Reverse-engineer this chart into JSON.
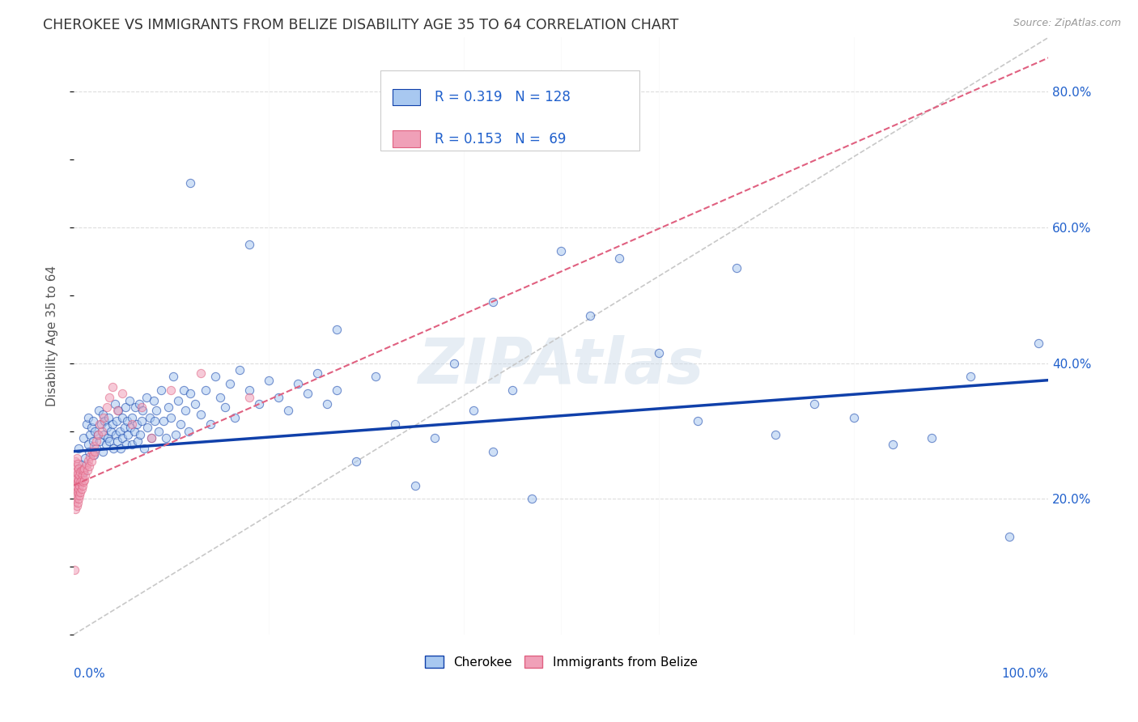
{
  "title": "CHEROKEE VS IMMIGRANTS FROM BELIZE DISABILITY AGE 35 TO 64 CORRELATION CHART",
  "source": "Source: ZipAtlas.com",
  "ylabel": "Disability Age 35 to 64",
  "yticks": [
    0.2,
    0.4,
    0.6,
    0.8
  ],
  "ytick_labels": [
    "20.0%",
    "40.0%",
    "60.0%",
    "80.0%"
  ],
  "legend_label1": "Cherokee",
  "legend_label2": "Immigrants from Belize",
  "R1": 0.319,
  "N1": 128,
  "R2": 0.153,
  "N2": 69,
  "color_blue": "#A8C8F0",
  "color_blue_line": "#1040AA",
  "color_pink": "#F0A0B8",
  "color_pink_line": "#E06080",
  "color_diag": "#C8C8C8",
  "background_color": "#FFFFFF",
  "grid_color": "#DDDDDD",
  "title_color": "#333333",
  "text_color_blue": "#2060CC",
  "text_color_source": "#999999",
  "cherokee_x": [
    0.005,
    0.008,
    0.01,
    0.01,
    0.012,
    0.013,
    0.015,
    0.015,
    0.016,
    0.017,
    0.018,
    0.02,
    0.02,
    0.021,
    0.022,
    0.023,
    0.025,
    0.026,
    0.027,
    0.028,
    0.03,
    0.03,
    0.031,
    0.032,
    0.033,
    0.034,
    0.035,
    0.036,
    0.037,
    0.038,
    0.04,
    0.041,
    0.042,
    0.043,
    0.044,
    0.045,
    0.046,
    0.047,
    0.048,
    0.05,
    0.05,
    0.052,
    0.053,
    0.054,
    0.055,
    0.056,
    0.057,
    0.058,
    0.06,
    0.06,
    0.062,
    0.063,
    0.065,
    0.066,
    0.067,
    0.068,
    0.07,
    0.071,
    0.072,
    0.075,
    0.076,
    0.078,
    0.08,
    0.082,
    0.083,
    0.085,
    0.087,
    0.09,
    0.092,
    0.095,
    0.097,
    0.1,
    0.102,
    0.105,
    0.107,
    0.11,
    0.113,
    0.115,
    0.118,
    0.12,
    0.125,
    0.13,
    0.135,
    0.14,
    0.145,
    0.15,
    0.155,
    0.16,
    0.165,
    0.17,
    0.18,
    0.19,
    0.2,
    0.21,
    0.22,
    0.23,
    0.24,
    0.25,
    0.26,
    0.27,
    0.29,
    0.31,
    0.33,
    0.35,
    0.37,
    0.39,
    0.41,
    0.43,
    0.45,
    0.47,
    0.5,
    0.53,
    0.56,
    0.6,
    0.64,
    0.68,
    0.72,
    0.76,
    0.8,
    0.84,
    0.88,
    0.92,
    0.96,
    0.99,
    0.43,
    0.27,
    0.18,
    0.12
  ],
  "cherokee_y": [
    0.275,
    0.25,
    0.24,
    0.29,
    0.26,
    0.31,
    0.28,
    0.32,
    0.27,
    0.295,
    0.305,
    0.285,
    0.315,
    0.265,
    0.3,
    0.275,
    0.295,
    0.33,
    0.285,
    0.31,
    0.27,
    0.325,
    0.295,
    0.315,
    0.28,
    0.305,
    0.29,
    0.32,
    0.285,
    0.3,
    0.31,
    0.275,
    0.34,
    0.295,
    0.315,
    0.285,
    0.33,
    0.3,
    0.275,
    0.32,
    0.29,
    0.305,
    0.335,
    0.28,
    0.315,
    0.295,
    0.345,
    0.305,
    0.28,
    0.32,
    0.3,
    0.335,
    0.31,
    0.285,
    0.34,
    0.295,
    0.315,
    0.33,
    0.275,
    0.35,
    0.305,
    0.32,
    0.29,
    0.345,
    0.315,
    0.33,
    0.3,
    0.36,
    0.315,
    0.29,
    0.335,
    0.32,
    0.38,
    0.295,
    0.345,
    0.31,
    0.36,
    0.33,
    0.3,
    0.355,
    0.34,
    0.325,
    0.36,
    0.31,
    0.38,
    0.35,
    0.335,
    0.37,
    0.32,
    0.39,
    0.36,
    0.34,
    0.375,
    0.35,
    0.33,
    0.37,
    0.355,
    0.385,
    0.34,
    0.36,
    0.255,
    0.38,
    0.31,
    0.22,
    0.29,
    0.4,
    0.33,
    0.27,
    0.36,
    0.2,
    0.565,
    0.47,
    0.555,
    0.415,
    0.315,
    0.54,
    0.295,
    0.34,
    0.32,
    0.28,
    0.29,
    0.38,
    0.145,
    0.43,
    0.49,
    0.45,
    0.575,
    0.665
  ],
  "belize_x": [
    0.001,
    0.001,
    0.001,
    0.001,
    0.001,
    0.002,
    0.002,
    0.002,
    0.002,
    0.002,
    0.002,
    0.003,
    0.003,
    0.003,
    0.003,
    0.003,
    0.003,
    0.004,
    0.004,
    0.004,
    0.004,
    0.004,
    0.005,
    0.005,
    0.005,
    0.005,
    0.006,
    0.006,
    0.006,
    0.007,
    0.007,
    0.007,
    0.008,
    0.008,
    0.008,
    0.009,
    0.009,
    0.01,
    0.01,
    0.011,
    0.011,
    0.012,
    0.013,
    0.014,
    0.015,
    0.016,
    0.017,
    0.018,
    0.019,
    0.02,
    0.021,
    0.022,
    0.023,
    0.025,
    0.027,
    0.029,
    0.031,
    0.034,
    0.037,
    0.04,
    0.045,
    0.05,
    0.06,
    0.07,
    0.08,
    0.1,
    0.13,
    0.18,
    0.001
  ],
  "belize_y": [
    0.195,
    0.21,
    0.22,
    0.23,
    0.245,
    0.185,
    0.2,
    0.215,
    0.225,
    0.24,
    0.255,
    0.19,
    0.205,
    0.218,
    0.23,
    0.248,
    0.26,
    0.195,
    0.21,
    0.225,
    0.238,
    0.252,
    0.2,
    0.215,
    0.228,
    0.245,
    0.205,
    0.22,
    0.235,
    0.21,
    0.225,
    0.24,
    0.215,
    0.228,
    0.242,
    0.22,
    0.235,
    0.225,
    0.242,
    0.228,
    0.245,
    0.235,
    0.25,
    0.242,
    0.256,
    0.248,
    0.262,
    0.255,
    0.27,
    0.265,
    0.278,
    0.27,
    0.285,
    0.295,
    0.31,
    0.3,
    0.32,
    0.335,
    0.35,
    0.365,
    0.33,
    0.355,
    0.31,
    0.335,
    0.29,
    0.36,
    0.385,
    0.35,
    0.095
  ],
  "marker_size": 55,
  "marker_alpha": 0.55,
  "line_width": 2.5,
  "xlim": [
    0.0,
    1.0
  ],
  "ylim": [
    0.0,
    0.88
  ]
}
